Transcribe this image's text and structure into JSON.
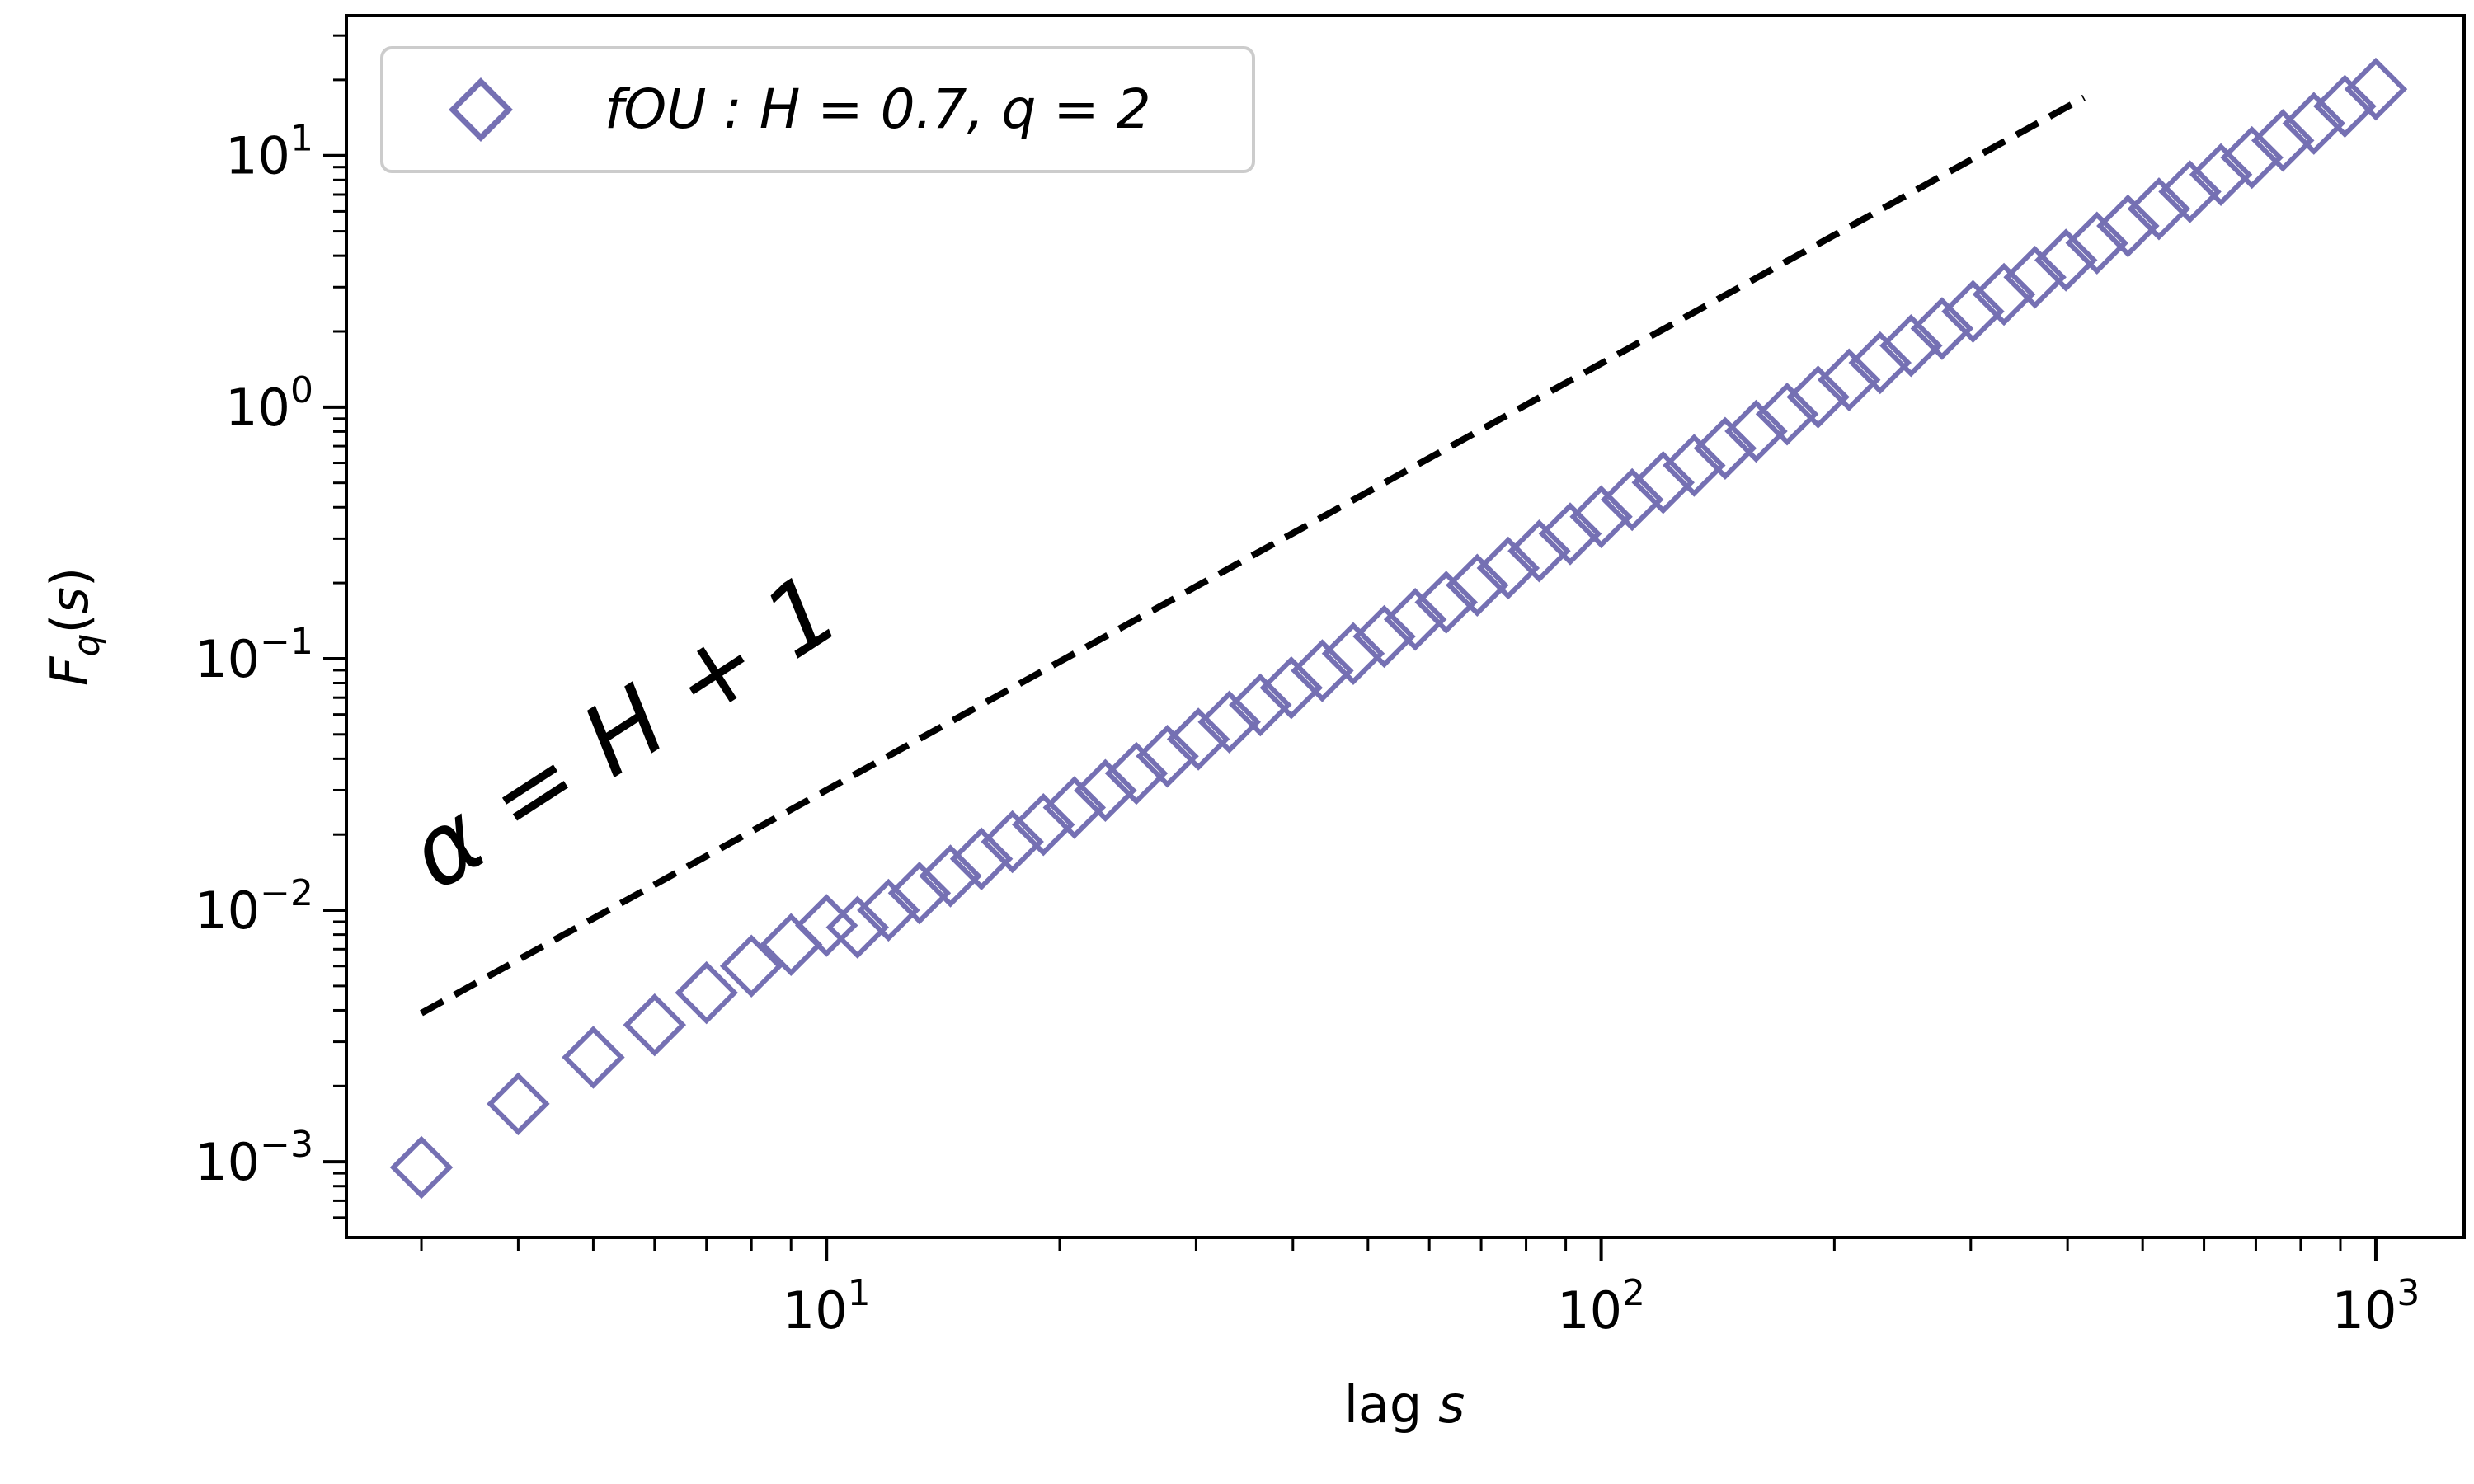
{
  "chart_data": {
    "type": "scatter",
    "xlabel": "lag s",
    "ylabel": "F_q(s)",
    "xscale": "log",
    "yscale": "log",
    "xlim": [
      2.4,
      1300
    ],
    "ylim": [
      0.0005,
      36
    ],
    "x_ticks": [
      {
        "value": 10,
        "mantissa": "10",
        "exponent": "1"
      },
      {
        "value": 100,
        "mantissa": "10",
        "exponent": "2"
      },
      {
        "value": 1000,
        "mantissa": "10",
        "exponent": "3"
      }
    ],
    "y_ticks": [
      {
        "value": 0.001,
        "mantissa": "10",
        "exponent": "−3"
      },
      {
        "value": 0.01,
        "mantissa": "10",
        "exponent": "−2"
      },
      {
        "value": 0.1,
        "mantissa": "10",
        "exponent": "−1"
      },
      {
        "value": 1,
        "mantissa": "10",
        "exponent": "0"
      },
      {
        "value": 10,
        "mantissa": "10",
        "exponent": "1"
      }
    ],
    "grid": false,
    "legend_position": "upper-left",
    "series": [
      {
        "name": "fOU : H = 0.7, q = 2",
        "marker": "diamond-open",
        "color": "#7570b3",
        "x_start": 3,
        "x_end": 1000,
        "points_per_decade": 25,
        "fit": {
          "prefactor": 0.000146,
          "exponent": 1.7
        },
        "first_points": [
          [
            3,
            0.00095
          ],
          [
            4,
            0.0017
          ],
          [
            5,
            0.0026
          ],
          [
            6,
            0.0035
          ],
          [
            7,
            0.0047
          ],
          [
            8,
            0.006
          ],
          [
            9,
            0.0073
          ],
          [
            10,
            0.0087
          ]
        ],
        "last_point": [
          1000,
          17
        ]
      }
    ],
    "reference_line": {
      "style": "dashed",
      "color": "#000000",
      "x_range": [
        3,
        420
      ],
      "y_range": [
        0.0039,
        17
      ],
      "slope": 1.7
    },
    "annotation": {
      "text": "α = H + 1",
      "rotation_deg": -33
    }
  }
}
